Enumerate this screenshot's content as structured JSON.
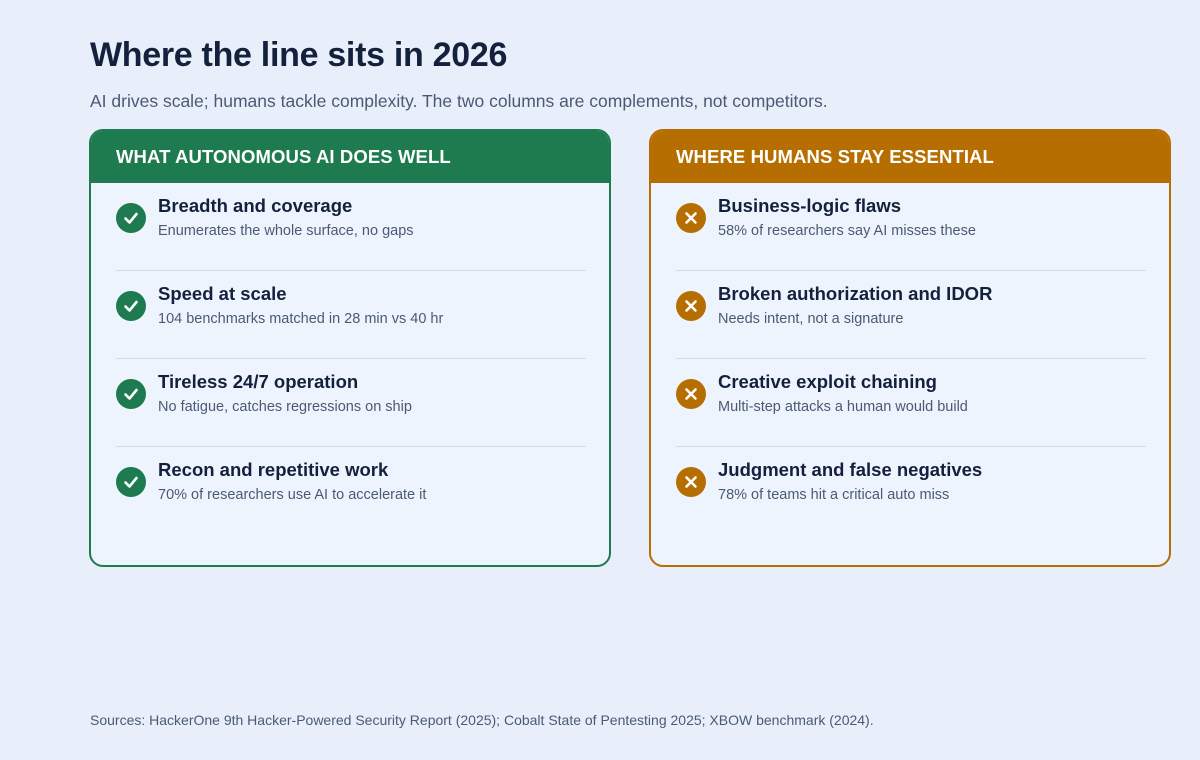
{
  "header": {
    "title": "Where the line sits in 2026",
    "subtitle": "AI drives scale; humans tackle complexity. The two columns are complements, not competitors."
  },
  "left_card": {
    "heading": "WHAT AUTONOMOUS AI DOES WELL",
    "icon": "check-icon",
    "accent": "#1e7a4f",
    "items": [
      {
        "title": "Breadth and coverage",
        "desc": "Enumerates the whole surface, no gaps"
      },
      {
        "title": "Speed at scale",
        "desc": "104 benchmarks matched in 28 min vs 40 hr"
      },
      {
        "title": "Tireless 24/7 operation",
        "desc": "No fatigue, catches regressions on ship"
      },
      {
        "title": "Recon and repetitive work",
        "desc": "70% of researchers use AI to accelerate it"
      }
    ]
  },
  "right_card": {
    "heading": "WHERE HUMANS STAY ESSENTIAL",
    "icon": "x-icon",
    "accent": "#b76e00",
    "items": [
      {
        "title": "Business-logic flaws",
        "desc": "58% of researchers say AI misses these"
      },
      {
        "title": "Broken authorization and IDOR",
        "desc": "Needs intent, not a signature"
      },
      {
        "title": "Creative exploit chaining",
        "desc": "Multi-step attacks a human would build"
      },
      {
        "title": "Judgment and false negatives",
        "desc": "78% of teams hit a critical auto miss"
      }
    ]
  },
  "footer": {
    "sources": "Sources: HackerOne 9th Hacker-Powered Security Report (2025); Cobalt State of Pentesting 2025; XBOW benchmark (2024)."
  }
}
